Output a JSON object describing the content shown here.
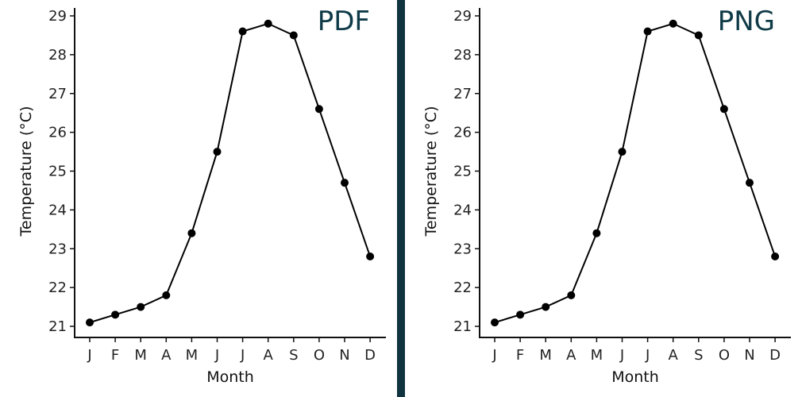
{
  "colors": {
    "divider": "#0f3440",
    "corner_label": "#0f3a47",
    "line": "#000000"
  },
  "panels": [
    {
      "corner_label": "PDF"
    },
    {
      "corner_label": "PNG"
    }
  ],
  "chart_data": [
    {
      "type": "line",
      "title": "PDF",
      "xlabel": "Month",
      "ylabel": "Temperature (°C)",
      "categories": [
        "J",
        "F",
        "M",
        "A",
        "M",
        "J",
        "J",
        "A",
        "S",
        "O",
        "N",
        "D"
      ],
      "values": [
        21.1,
        21.3,
        21.5,
        21.8,
        23.4,
        25.5,
        28.6,
        28.8,
        28.5,
        26.6,
        24.7,
        22.8
      ],
      "yticks": [
        21,
        22,
        23,
        24,
        25,
        26,
        27,
        28,
        29
      ],
      "ylim": [
        21,
        29
      ],
      "grid": false,
      "legend": "none"
    },
    {
      "type": "line",
      "title": "PNG",
      "xlabel": "Month",
      "ylabel": "Temperature (°C)",
      "categories": [
        "J",
        "F",
        "M",
        "A",
        "M",
        "J",
        "J",
        "A",
        "S",
        "O",
        "N",
        "D"
      ],
      "values": [
        21.1,
        21.3,
        21.5,
        21.8,
        23.4,
        25.5,
        28.6,
        28.8,
        28.5,
        26.6,
        24.7,
        22.8
      ],
      "yticks": [
        21,
        22,
        23,
        24,
        25,
        26,
        27,
        28,
        29
      ],
      "ylim": [
        21,
        29
      ],
      "grid": false,
      "legend": "none"
    }
  ]
}
